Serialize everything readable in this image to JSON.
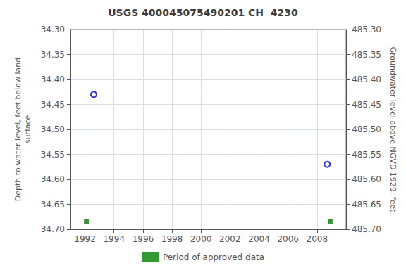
{
  "chart_data": {
    "type": "scatter",
    "title": "USGS 400045075490201 CH  4230",
    "ylabel": "Depth to water level, feet below land\nsurface",
    "y2label": "Groundwater level above NGVD 1929, feet",
    "xlim": [
      1991,
      2010
    ],
    "xticks": [
      1992,
      1994,
      1996,
      1998,
      2000,
      2002,
      2004,
      2006,
      2008
    ],
    "ylim": [
      34.7,
      34.3
    ],
    "yticks": [
      {
        "value": 34.3,
        "label": "34.30"
      },
      {
        "value": 34.35,
        "label": "34.35"
      },
      {
        "value": 34.4,
        "label": "34.40"
      },
      {
        "value": 34.45,
        "label": "34.45"
      },
      {
        "value": 34.5,
        "label": "34.50"
      },
      {
        "value": 34.55,
        "label": "34.55"
      },
      {
        "value": 34.6,
        "label": "34.60"
      },
      {
        "value": 34.65,
        "label": "34.65"
      },
      {
        "value": 34.7,
        "label": "34.70"
      }
    ],
    "y2lim": [
      485.7,
      485.3
    ],
    "y2ticks": [
      {
        "value": 485.7,
        "label": "485.70"
      },
      {
        "value": 485.65,
        "label": "485.65"
      },
      {
        "value": 485.6,
        "label": "485.60"
      },
      {
        "value": 485.55,
        "label": "485.55"
      },
      {
        "value": 485.5,
        "label": "485.50"
      },
      {
        "value": 485.45,
        "label": "485.45"
      },
      {
        "value": 485.4,
        "label": "485.40"
      },
      {
        "value": 485.35,
        "label": "485.35"
      },
      {
        "value": 485.3,
        "label": "485.30"
      }
    ],
    "series": [
      {
        "color": "#0000cc",
        "marker": "circle",
        "values": [
          [
            1992.6,
            34.43
          ],
          [
            2008.7,
            34.57
          ]
        ]
      },
      {
        "name": "Period of approved data",
        "color": "#008000",
        "marker": "square",
        "values": [
          [
            1992.1,
            34.685
          ],
          [
            2008.9,
            34.685
          ]
        ]
      }
    ],
    "grid": true,
    "legend": "bottom"
  }
}
